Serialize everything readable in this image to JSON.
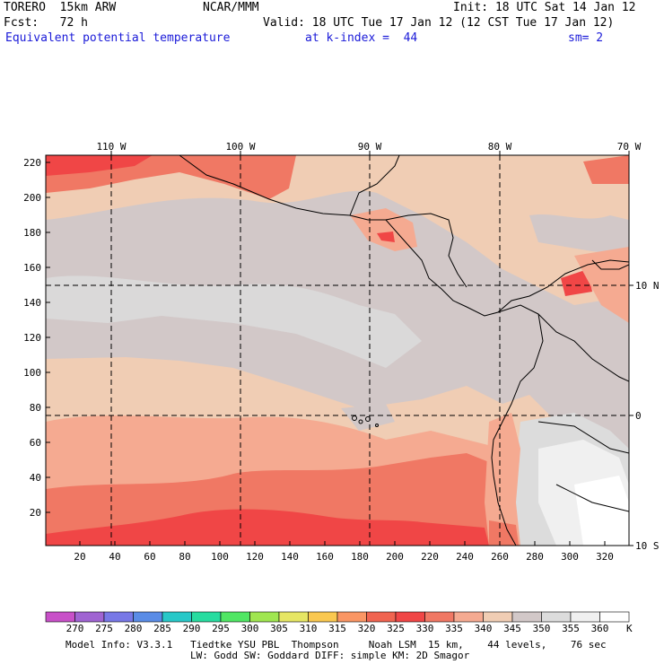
{
  "header": {
    "model": "TORERO  15km ARW",
    "org": "NCAR/MMM",
    "init": "Init: 18 UTC Sat 14 Jan 12",
    "fcst": "Fcst:   72 h",
    "valid": "Valid: 18 UTC Tue 17 Jan 12 (12 CST Tue 17 Jan 12)",
    "field": "Equivalent potential temperature",
    "level": "at k-index =  44",
    "smooth": "sm= 2"
  },
  "top_lon_labels": [
    "110 W",
    "100 W",
    "90 W",
    "80 W",
    "70 W"
  ],
  "right_lat_labels": [
    "10 N",
    "0",
    "10 S"
  ],
  "left_grid_labels": [
    "220",
    "200",
    "180",
    "160",
    "140",
    "120",
    "100",
    "80",
    "60",
    "40",
    "20"
  ],
  "bottom_grid_labels": [
    "20",
    "40",
    "60",
    "80",
    "100",
    "120",
    "140",
    "160",
    "180",
    "200",
    "220",
    "240",
    "260",
    "280",
    "300",
    "320"
  ],
  "colorbar": {
    "unit": "K",
    "labels": [
      "270",
      "275",
      "280",
      "285",
      "290",
      "295",
      "300",
      "305",
      "310",
      "315",
      "320",
      "325",
      "330",
      "335",
      "340",
      "345",
      "350",
      "355",
      "360"
    ],
    "colors": [
      "#c850c8",
      "#a064d2",
      "#7878e6",
      "#5a8ce6",
      "#28c8c8",
      "#28dca0",
      "#50e664",
      "#a0e650",
      "#e6e664",
      "#fac850",
      "#fa9664",
      "#f06450",
      "#f04646",
      "#f07864",
      "#f5aa91",
      "#f0cdb4",
      "#d2c8c8",
      "#dcdcdc",
      "#f0f0f0",
      "#ffffff"
    ]
  },
  "footer": {
    "line1": "Model Info: V3.3.1   Tiedtke YSU PBL  Thompson     Noah LSM  15 km,    44 levels,    76 sec",
    "line2": "LW: Godd SW: Goddard DIFF: simple KM: 2D Smagor"
  }
}
